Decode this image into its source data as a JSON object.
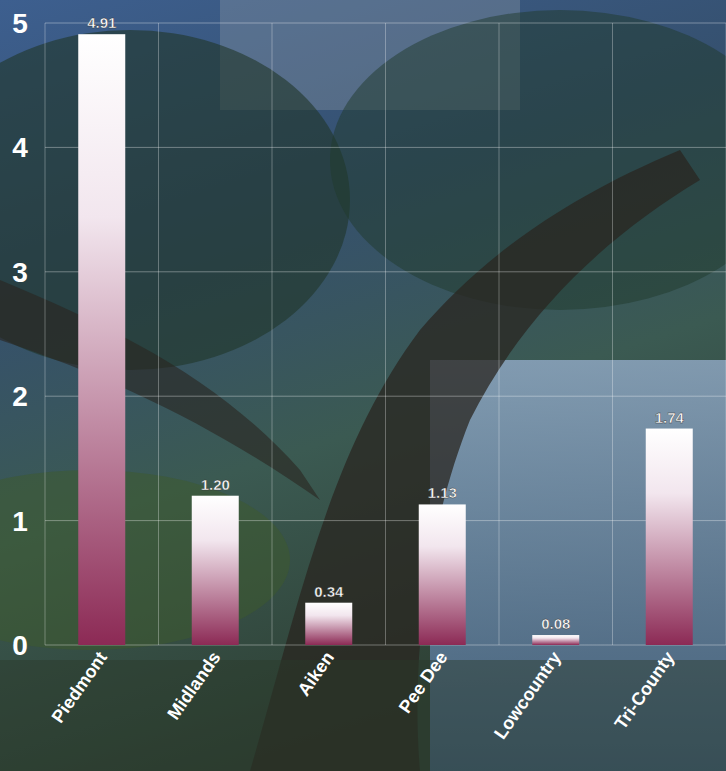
{
  "chart_data": {
    "type": "bar",
    "categories": [
      "Piedmont",
      "Midlands",
      "Aiken",
      "Pee Dee",
      "Lowcountry",
      "Tri-County"
    ],
    "values": [
      4.91,
      1.2,
      0.34,
      1.13,
      0.08,
      1.74
    ],
    "value_labels": [
      "4.91",
      "1.20",
      "0.34",
      "1.13",
      "0.08",
      "1.74"
    ],
    "color": "#8c2a55",
    "ylim": [
      0,
      5
    ],
    "yticks": [
      0,
      1,
      2,
      3,
      4,
      5
    ],
    "grid": true,
    "data_labels": true
  }
}
